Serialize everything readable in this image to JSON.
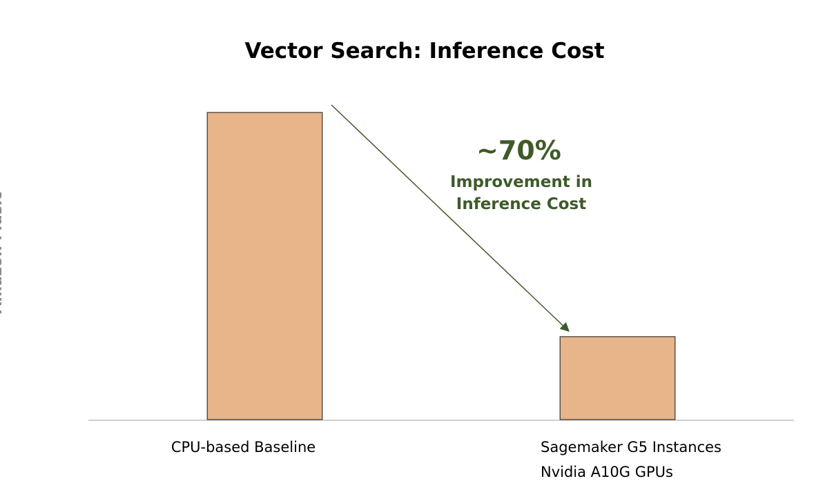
{
  "chart_data": {
    "type": "bar",
    "title": "Vector Search: Inference Cost",
    "y_label": "Cost ($/hr):\nAmazon Music",
    "categories": [
      "CPU-based Baseline",
      "Sagemaker G5 Instances\nNvidia A10G GPUs"
    ],
    "values": [
      100,
      27
    ],
    "color": "#e8b48a",
    "ylim": [
      0,
      100
    ],
    "annotation": {
      "headline": "~70%",
      "text": "Improvement in\nInference Cost",
      "color": "#3f5a2a"
    }
  }
}
